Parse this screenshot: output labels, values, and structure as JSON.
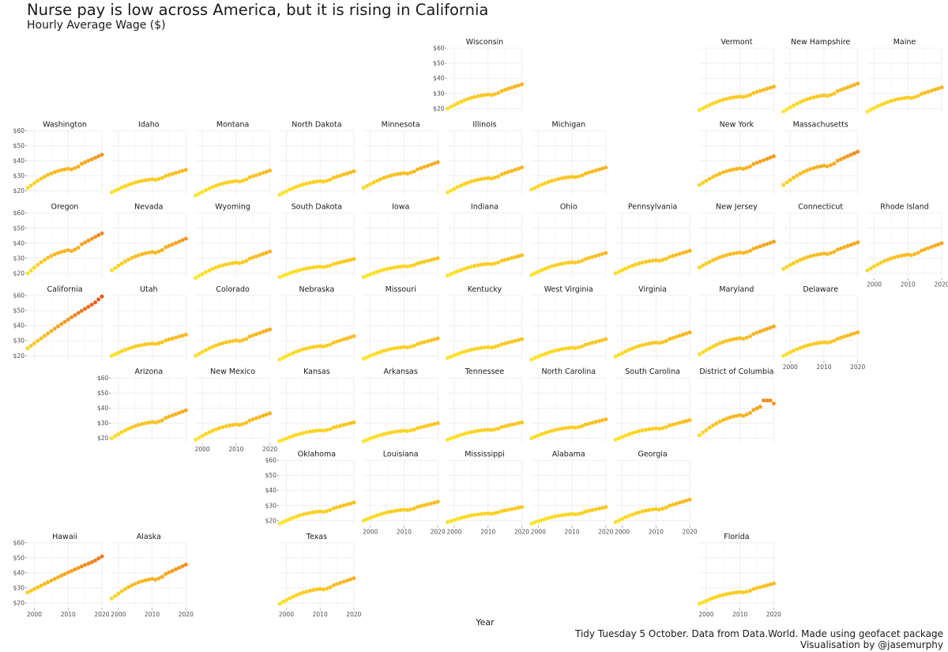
{
  "title": "Nurse pay is low across America, but it is rising in California",
  "subtitle": "Hourly Average Wage ($)",
  "caption_line1": "Tidy Tuesday 5 October. Data from Data.World. Made using geofacet package",
  "caption_line2": "Visualisation by @jasemurphy",
  "chart_data": {
    "type": "scatter",
    "title": "Nurse pay is low across America, but it is rising in California",
    "subtitle": "Hourly Average Wage ($)",
    "xlabel": "Year",
    "ylabel": "",
    "xlim": [
      1998,
      2020
    ],
    "ylim": [
      17,
      60
    ],
    "x_ticks": [
      2000,
      2010,
      2020
    ],
    "y_ticks": [
      20,
      30,
      40,
      50,
      60
    ],
    "y_tick_labels": [
      "$20",
      "$30",
      "$40",
      "$50",
      "$60"
    ],
    "grid": true,
    "color_scale": {
      "low": "#fde725",
      "mid": "#f5a623",
      "high": "#e8541a",
      "domain": [
        18,
        58
      ]
    },
    "panels": [
      {
        "name": "Wisconsin",
        "row": 0,
        "col": 5,
        "start": 20,
        "end": 36,
        "profile": "std"
      },
      {
        "name": "Vermont",
        "row": 0,
        "col": 8,
        "start": 19,
        "end": 34.5,
        "profile": "std"
      },
      {
        "name": "New Hampshire",
        "row": 0,
        "col": 9,
        "start": 18,
        "end": 36.5,
        "profile": "std"
      },
      {
        "name": "Maine",
        "row": 0,
        "col": 10,
        "start": 18,
        "end": 34,
        "profile": "std"
      },
      {
        "name": "Washington",
        "row": 1,
        "col": 0,
        "start": 22,
        "end": 44,
        "profile": "std"
      },
      {
        "name": "Idaho",
        "row": 1,
        "col": 1,
        "start": 19,
        "end": 34,
        "profile": "std"
      },
      {
        "name": "Montana",
        "row": 1,
        "col": 2,
        "start": 17,
        "end": 33.5,
        "profile": "std"
      },
      {
        "name": "North Dakota",
        "row": 1,
        "col": 3,
        "start": 17.5,
        "end": 33,
        "profile": "std"
      },
      {
        "name": "Minnesota",
        "row": 1,
        "col": 4,
        "start": 22,
        "end": 39,
        "profile": "std"
      },
      {
        "name": "Illinois",
        "row": 1,
        "col": 5,
        "start": 19,
        "end": 35.5,
        "profile": "std"
      },
      {
        "name": "Michigan",
        "row": 1,
        "col": 6,
        "start": 21,
        "end": 35.5,
        "profile": "std"
      },
      {
        "name": "New York",
        "row": 1,
        "col": 8,
        "start": 24,
        "end": 43,
        "profile": "std"
      },
      {
        "name": "Massachusetts",
        "row": 1,
        "col": 9,
        "start": 24,
        "end": 46,
        "profile": "std"
      },
      {
        "name": "Oregon",
        "row": 2,
        "col": 0,
        "start": 20,
        "end": 46.5,
        "profile": "std"
      },
      {
        "name": "Nevada",
        "row": 2,
        "col": 1,
        "start": 22,
        "end": 43,
        "profile": "std"
      },
      {
        "name": "Wyoming",
        "row": 2,
        "col": 2,
        "start": 17,
        "end": 34.5,
        "profile": "std"
      },
      {
        "name": "South Dakota",
        "row": 2,
        "col": 3,
        "start": 17.5,
        "end": 29.5,
        "profile": "std"
      },
      {
        "name": "Iowa",
        "row": 2,
        "col": 4,
        "start": 17.5,
        "end": 30,
        "profile": "std"
      },
      {
        "name": "Indiana",
        "row": 2,
        "col": 5,
        "start": 18.5,
        "end": 32,
        "profile": "std"
      },
      {
        "name": "Ohio",
        "row": 2,
        "col": 6,
        "start": 19,
        "end": 33.5,
        "profile": "std"
      },
      {
        "name": "Pennsylvania",
        "row": 2,
        "col": 7,
        "start": 20,
        "end": 35,
        "profile": "std"
      },
      {
        "name": "New Jersey",
        "row": 2,
        "col": 8,
        "start": 24,
        "end": 41,
        "profile": "std"
      },
      {
        "name": "Connecticut",
        "row": 2,
        "col": 9,
        "start": 23,
        "end": 40.5,
        "profile": "std"
      },
      {
        "name": "Rhode Island",
        "row": 2,
        "col": 10,
        "start": 22,
        "end": 40,
        "profile": "std"
      },
      {
        "name": "California",
        "row": 3,
        "col": 0,
        "start": 25,
        "end": 58,
        "profile": "steep"
      },
      {
        "name": "Utah",
        "row": 3,
        "col": 1,
        "start": 20,
        "end": 34,
        "profile": "std"
      },
      {
        "name": "Colorado",
        "row": 3,
        "col": 2,
        "start": 20,
        "end": 37.5,
        "profile": "std"
      },
      {
        "name": "Nebraska",
        "row": 3,
        "col": 3,
        "start": 17.5,
        "end": 33,
        "profile": "std"
      },
      {
        "name": "Missouri",
        "row": 3,
        "col": 4,
        "start": 18,
        "end": 31.5,
        "profile": "std"
      },
      {
        "name": "Kentucky",
        "row": 3,
        "col": 5,
        "start": 18.5,
        "end": 31,
        "profile": "std"
      },
      {
        "name": "West Virginia",
        "row": 3,
        "col": 6,
        "start": 17.5,
        "end": 31,
        "profile": "std"
      },
      {
        "name": "Virginia",
        "row": 3,
        "col": 7,
        "start": 19.5,
        "end": 35.5,
        "profile": "std"
      },
      {
        "name": "Maryland",
        "row": 3,
        "col": 8,
        "start": 21,
        "end": 39.5,
        "profile": "std"
      },
      {
        "name": "Delaware",
        "row": 3,
        "col": 9,
        "start": 20,
        "end": 35.5,
        "profile": "std"
      },
      {
        "name": "Arizona",
        "row": 4,
        "col": 1,
        "start": 20,
        "end": 38.5,
        "profile": "std"
      },
      {
        "name": "New Mexico",
        "row": 4,
        "col": 2,
        "start": 19,
        "end": 36.5,
        "profile": "std"
      },
      {
        "name": "Kansas",
        "row": 4,
        "col": 3,
        "start": 18,
        "end": 30.5,
        "profile": "std"
      },
      {
        "name": "Arkansas",
        "row": 4,
        "col": 4,
        "start": 18,
        "end": 30,
        "profile": "std"
      },
      {
        "name": "Tennessee",
        "row": 4,
        "col": 5,
        "start": 19,
        "end": 30.5,
        "profile": "std"
      },
      {
        "name": "North Carolina",
        "row": 4,
        "col": 6,
        "start": 20,
        "end": 32.5,
        "profile": "std"
      },
      {
        "name": "South Carolina",
        "row": 4,
        "col": 7,
        "start": 19,
        "end": 32,
        "profile": "std"
      },
      {
        "name": "District of Columbia",
        "row": 4,
        "col": 8,
        "start": 22,
        "end": 45,
        "profile": "dc"
      },
      {
        "name": "Oklahoma",
        "row": 5,
        "col": 3,
        "start": 18,
        "end": 32,
        "profile": "std"
      },
      {
        "name": "Louisiana",
        "row": 5,
        "col": 4,
        "start": 20,
        "end": 32.5,
        "profile": "std"
      },
      {
        "name": "Mississippi",
        "row": 5,
        "col": 5,
        "start": 19,
        "end": 29,
        "profile": "std"
      },
      {
        "name": "Alabama",
        "row": 5,
        "col": 6,
        "start": 18,
        "end": 29,
        "profile": "std"
      },
      {
        "name": "Georgia",
        "row": 5,
        "col": 7,
        "start": 19,
        "end": 34,
        "profile": "std"
      },
      {
        "name": "Hawaii",
        "row": 6,
        "col": 0,
        "start": 27,
        "end": 50,
        "profile": "steep"
      },
      {
        "name": "Alaska",
        "row": 6,
        "col": 1,
        "start": 23,
        "end": 45.5,
        "profile": "std"
      },
      {
        "name": "Texas",
        "row": 6,
        "col": 3,
        "start": 19.5,
        "end": 36.5,
        "profile": "std"
      },
      {
        "name": "Florida",
        "row": 6,
        "col": 8,
        "start": 19.5,
        "end": 33,
        "profile": "std"
      }
    ]
  }
}
